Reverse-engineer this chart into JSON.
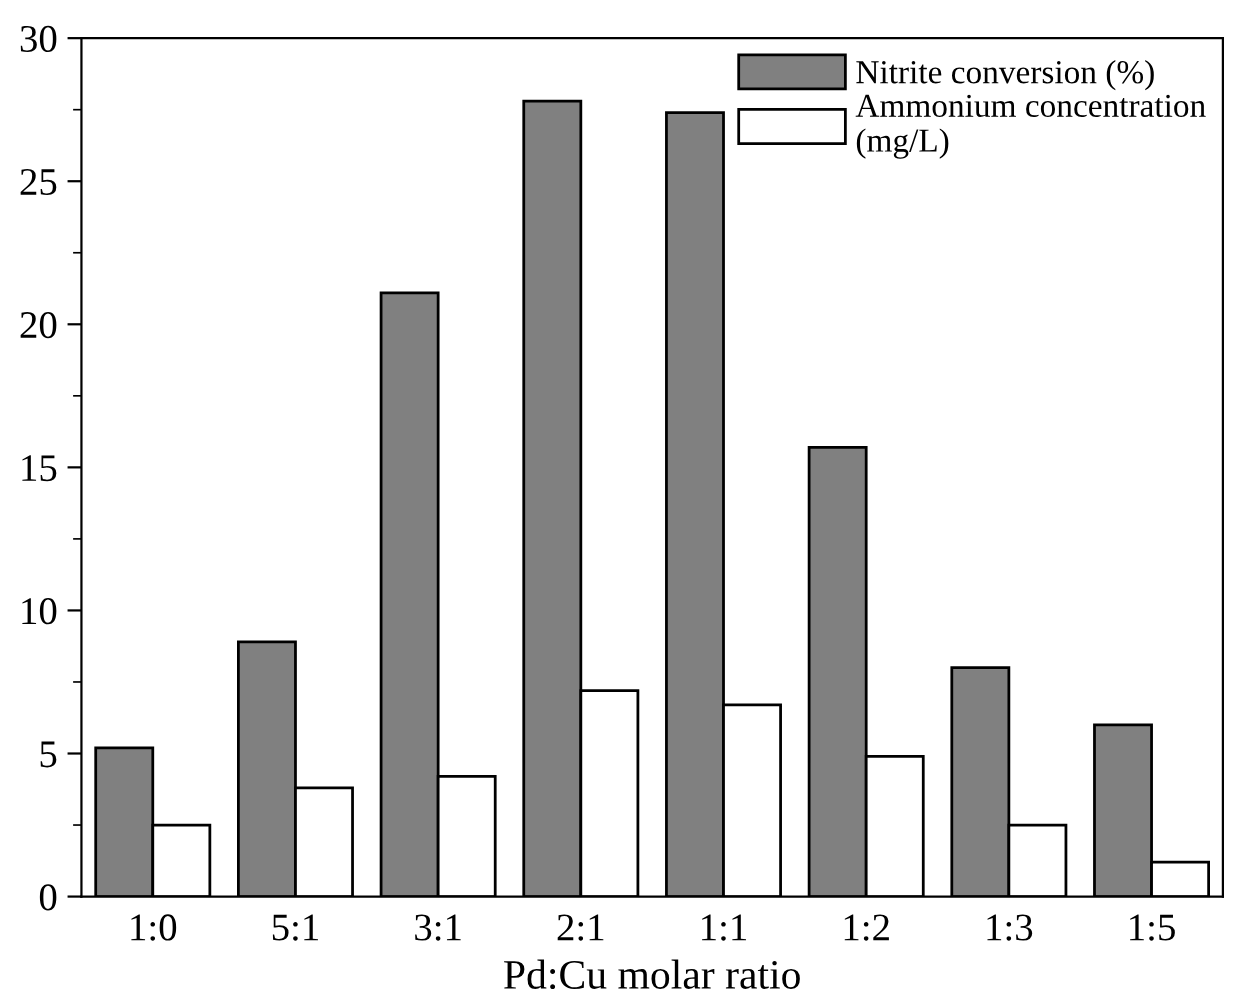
{
  "chart_data": {
    "type": "bar",
    "xlabel": "Pd:Cu molar ratio",
    "categories": [
      "1:0",
      "5:1",
      "3:1",
      "2:1",
      "1:1",
      "1:2",
      "1:3",
      "1:5"
    ],
    "series": [
      {
        "name": "Nitrite conversion (%)",
        "color": "#808080",
        "values": [
          5.2,
          8.9,
          21.1,
          27.8,
          27.4,
          15.7,
          8.0,
          6.0
        ]
      },
      {
        "name": "Ammonium concentration\n(mg/L)",
        "color": "#ffffff",
        "values": [
          2.5,
          3.8,
          4.2,
          7.2,
          6.7,
          4.9,
          2.5,
          1.2
        ]
      }
    ],
    "ylim": [
      0,
      30
    ],
    "yticks": [
      0,
      5,
      10,
      15,
      20,
      25,
      30
    ],
    "grid": false,
    "legend": "top right"
  }
}
